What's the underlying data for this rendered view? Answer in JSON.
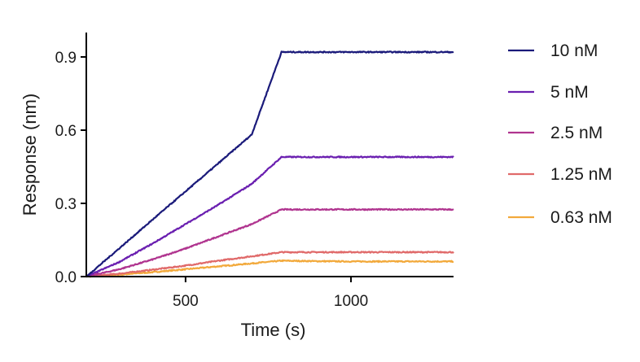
{
  "chart_data": {
    "type": "line",
    "title": "",
    "xlabel": "Time (s)",
    "ylabel": "Response  (nm)",
    "xlim": [
      200,
      1310
    ],
    "ylim": [
      0,
      1.0
    ],
    "x_ticks": [
      500,
      1000
    ],
    "x_tick_labels": [
      "500",
      "1000"
    ],
    "y_ticks": [
      0.0,
      0.3,
      0.6,
      0.9
    ],
    "y_tick_labels": [
      "0.0",
      "0.3",
      "0.6",
      "0.9"
    ],
    "grid": false,
    "legend_position": "right",
    "series": [
      {
        "name": "10 nM",
        "color": "#1a1a7a",
        "x": [
          200,
          300,
          400,
          500,
          600,
          700,
          790,
          900,
          1000,
          1100,
          1200,
          1310
        ],
        "values": [
          0.0,
          0.116,
          0.233,
          0.349,
          0.465,
          0.582,
          0.92,
          0.92,
          0.92,
          0.92,
          0.92,
          0.92
        ]
      },
      {
        "name": "5 nM",
        "color": "#6a1fb0",
        "x": [
          200,
          300,
          400,
          500,
          600,
          700,
          790,
          900,
          1000,
          1100,
          1200,
          1310
        ],
        "values": [
          0.0,
          0.06,
          0.135,
          0.215,
          0.295,
          0.38,
          0.49,
          0.49,
          0.49,
          0.49,
          0.49,
          0.49
        ]
      },
      {
        "name": "2.5 nM",
        "color": "#b0348f",
        "x": [
          200,
          300,
          400,
          500,
          600,
          700,
          790,
          900,
          1000,
          1100,
          1200,
          1310
        ],
        "values": [
          0.0,
          0.03,
          0.07,
          0.115,
          0.165,
          0.215,
          0.275,
          0.275,
          0.275,
          0.275,
          0.275,
          0.275
        ]
      },
      {
        "name": "1.25 nM",
        "color": "#e06a6a",
        "x": [
          200,
          300,
          400,
          500,
          600,
          700,
          790,
          900,
          1000,
          1100,
          1200,
          1310
        ],
        "values": [
          0.0,
          0.012,
          0.028,
          0.045,
          0.065,
          0.083,
          0.1,
          0.1,
          0.1,
          0.1,
          0.1,
          0.1
        ]
      },
      {
        "name": "0.63 nM",
        "color": "#f2a93b",
        "x": [
          200,
          300,
          400,
          500,
          600,
          700,
          790,
          900,
          1000,
          1100,
          1200,
          1310
        ],
        "values": [
          0.0,
          0.008,
          0.018,
          0.03,
          0.042,
          0.054,
          0.065,
          0.063,
          0.062,
          0.062,
          0.062,
          0.062
        ]
      }
    ]
  }
}
